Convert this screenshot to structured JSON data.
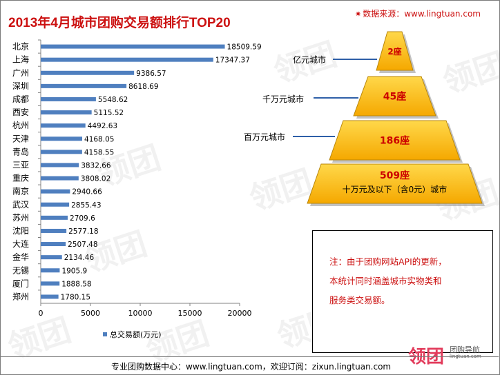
{
  "title": "2013年4月城市团购交易额排行TOP20",
  "source_label": "数据来源：www.lingtuan.com",
  "watermark_text": "领团",
  "chart_data": {
    "type": "bar",
    "orientation": "horizontal",
    "title": "2013年4月城市团购交易额排行TOP20",
    "categories": [
      "北京",
      "上海",
      "广州",
      "深圳",
      "成都",
      "西安",
      "杭州",
      "天津",
      "青岛",
      "三亚",
      "重庆",
      "南京",
      "武汉",
      "苏州",
      "沈阳",
      "大连",
      "金华",
      "无锡",
      "厦门",
      "郑州"
    ],
    "value_labels": [
      "18509.59",
      "17347.37",
      "9386.57",
      "8618.69",
      "5548.62",
      "5115.52",
      "4492.63",
      "4168.05",
      "4158.55",
      "3832.66",
      "3808.02",
      "2940.66",
      "2855.43",
      "2709.6",
      "2577.18",
      "2507.48",
      "2134.46",
      "1905.9",
      "1888.58",
      "1780.15"
    ],
    "values": [
      18509.59,
      17347.37,
      9386.57,
      8618.69,
      5548.62,
      5115.52,
      4492.63,
      4168.05,
      4158.55,
      3832.66,
      3808.02,
      2940.66,
      2855.43,
      2709.6,
      2577.18,
      2507.48,
      2134.46,
      1905.9,
      1888.58,
      1780.15
    ],
    "xlim": [
      0,
      20000
    ],
    "xticks": [
      "0",
      "5000",
      "10000",
      "15000",
      "20000"
    ],
    "legend": "总交易额(万元)",
    "bar_color": "#4f7fbf"
  },
  "pyramid": {
    "levels": [
      {
        "count": "2座",
        "label": "亿元城市"
      },
      {
        "count": "45座",
        "label": "千万元城市"
      },
      {
        "count": "186座",
        "label": "百万元城市"
      },
      {
        "count": "509座",
        "label": "十万元及以下（含0元）城市"
      }
    ],
    "fill_color": "#ffc000",
    "text_color": "#cc0000"
  },
  "note": {
    "lines": [
      "注：由于团购网站API的更新，",
      "本统计同时涵盖城市实物类和",
      "服务类交易额。"
    ]
  },
  "footer": "专业团购数据中心：www.lingtuan.com，欢迎订阅：zixun.lingtuan.com",
  "brand": {
    "logo": "领团",
    "sub": "团购导航",
    "url": "lingtuan.com"
  }
}
